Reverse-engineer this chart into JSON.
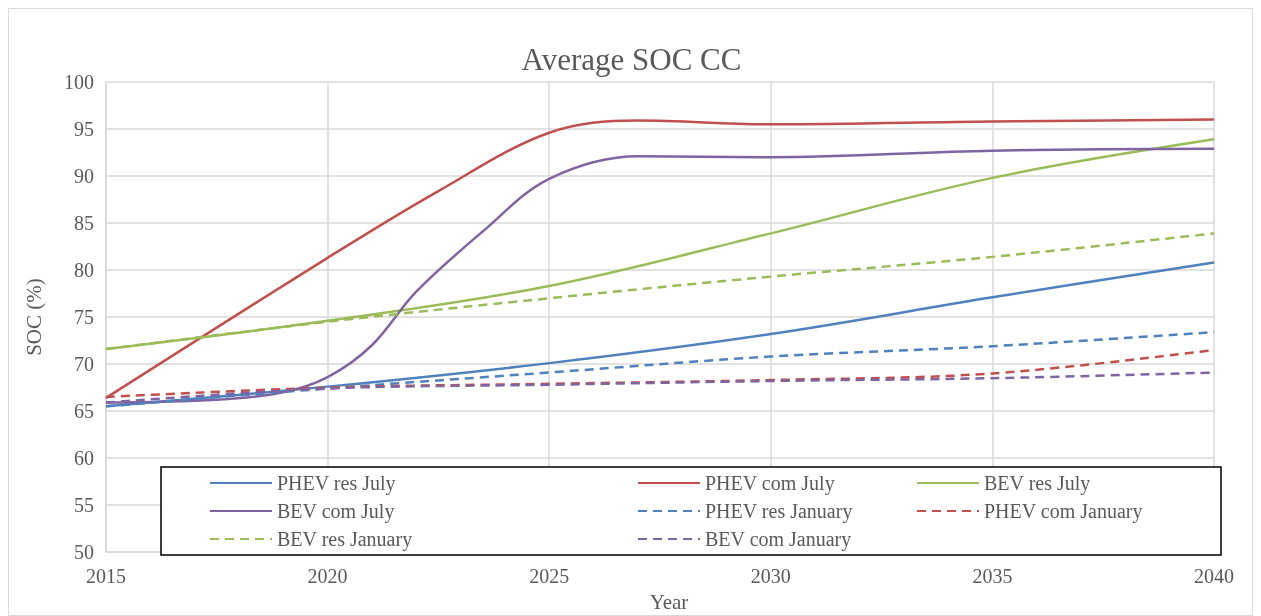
{
  "chart_data": {
    "type": "line",
    "title": "Average SOC CC",
    "xlabel": "Year",
    "ylabel": "SOC (%)",
    "xlim": [
      2015,
      2040
    ],
    "xticks": [
      2015,
      2020,
      2025,
      2030,
      2035,
      2040
    ],
    "ylim": [
      50,
      100
    ],
    "yticks": [
      50,
      55,
      60,
      65,
      70,
      75,
      80,
      85,
      90,
      95,
      100
    ],
    "grid": true,
    "legend": "bottom",
    "marker": "none",
    "series": [
      {
        "name": "PHEV res July",
        "color": "#4f81bd",
        "line_style": "solid",
        "x": [
          2015,
          2020,
          2025,
          2030,
          2035,
          2040
        ],
        "values": [
          65.5,
          67.6,
          70.1,
          73.2,
          77.1,
          80.8
        ]
      },
      {
        "name": "PHEV com July",
        "color": "#c0504d",
        "line_style": "solid",
        "x": [
          2015,
          2020,
          2022.5,
          2025,
          2027,
          2030,
          2035,
          2040
        ],
        "values": [
          66.4,
          81.3,
          88.4,
          94.6,
          95.9,
          95.5,
          95.8,
          96.0
        ]
      },
      {
        "name": "BEV res July",
        "color": "#9bbb59",
        "line_style": "solid",
        "x": [
          2015,
          2020,
          2025,
          2030,
          2035,
          2040
        ],
        "values": [
          71.6,
          74.6,
          78.3,
          83.9,
          89.8,
          93.9
        ]
      },
      {
        "name": "BEV com July",
        "color": "#8064a2",
        "line_style": "solid",
        "x": [
          2015,
          2017.5,
          2019,
          2020,
          2021,
          2022,
          2023.5,
          2025,
          2027,
          2030,
          2035,
          2040
        ],
        "values": [
          65.9,
          66.2,
          67.0,
          68.6,
          72.0,
          77.7,
          84.1,
          89.7,
          92.1,
          92.0,
          92.7,
          92.9
        ]
      },
      {
        "name": "PHEV res January",
        "color": "#4f81bd",
        "line_style": "dashed",
        "x": [
          2015,
          2020,
          2025,
          2030,
          2035,
          2040
        ],
        "values": [
          65.5,
          67.4,
          69.1,
          70.8,
          71.9,
          73.4
        ]
      },
      {
        "name": "PHEV com January",
        "color": "#c0504d",
        "line_style": "dashed",
        "x": [
          2015,
          2020,
          2025,
          2030,
          2035,
          2040
        ],
        "values": [
          66.5,
          67.5,
          67.9,
          68.3,
          69.0,
          71.5
        ]
      },
      {
        "name": "BEV res January",
        "color": "#9bbb59",
        "line_style": "dashed",
        "x": [
          2015,
          2020,
          2025,
          2030,
          2035,
          2040
        ],
        "values": [
          71.6,
          74.5,
          77.0,
          79.3,
          81.4,
          83.9
        ]
      },
      {
        "name": "BEV com January",
        "color": "#8064a2",
        "line_style": "dashed",
        "x": [
          2015,
          2020,
          2025,
          2030,
          2035,
          2040
        ],
        "values": [
          65.9,
          67.4,
          67.8,
          68.2,
          68.5,
          69.1
        ]
      }
    ]
  }
}
